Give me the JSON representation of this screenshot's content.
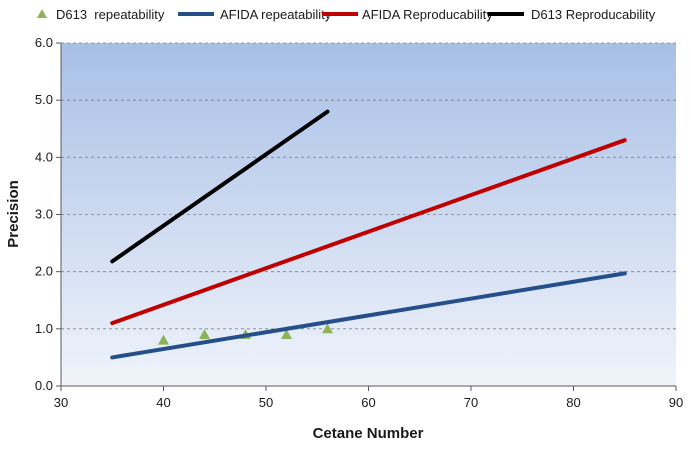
{
  "chart_data": {
    "type": "line",
    "title": "",
    "xlabel": "Cetane Number",
    "ylabel": "Precision",
    "xlim": [
      30,
      90
    ],
    "ylim": [
      0.0,
      6.0
    ],
    "x_ticks": [
      "30",
      "40",
      "50",
      "60",
      "70",
      "80",
      "90"
    ],
    "y_ticks": [
      "0.0",
      "1.0",
      "2.0",
      "3.0",
      "4.0",
      "5.0",
      "6.0"
    ],
    "grid": "horizontal-dashed",
    "legend_position": "top",
    "colors": {
      "plot_bg_top": "#a8bfe6",
      "plot_bg_bottom": "#f0f4fb",
      "grid": "#7f7f7f",
      "axis": "#595959"
    },
    "series": [
      {
        "name": "D613  repeatability",
        "kind": "scatter",
        "marker": "triangle",
        "color": "#8db358",
        "points": [
          {
            "x": 40,
            "y": 0.8
          },
          {
            "x": 44,
            "y": 0.9
          },
          {
            "x": 48,
            "y": 0.9
          },
          {
            "x": 52,
            "y": 0.9
          },
          {
            "x": 56,
            "y": 1.0
          }
        ]
      },
      {
        "name": "AFIDA repeatability",
        "kind": "line",
        "color": "#254f8a",
        "points": [
          {
            "x": 35,
            "y": 0.5
          },
          {
            "x": 85,
            "y": 1.97
          }
        ]
      },
      {
        "name": "AFIDA Reproducability",
        "kind": "line",
        "color": "#c00000",
        "points": [
          {
            "x": 35,
            "y": 1.1
          },
          {
            "x": 85,
            "y": 4.3
          }
        ]
      },
      {
        "name": "D613 Reproducability",
        "kind": "line",
        "color": "#000000",
        "points": [
          {
            "x": 35,
            "y": 2.18
          },
          {
            "x": 56,
            "y": 4.8
          }
        ]
      }
    ]
  }
}
